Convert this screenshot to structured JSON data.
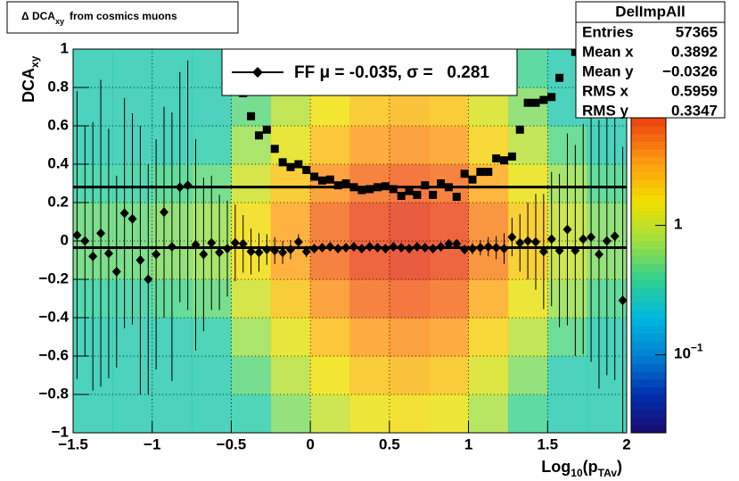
{
  "chart_data": {
    "type": "heatmap",
    "title": {
      "main": "Δ DCA",
      "sub": "xy",
      "rest": "from cosmics muons"
    },
    "ylabel": {
      "main": "DCA",
      "sub": "xy"
    },
    "xlabel": {
      "a": "Log",
      "sub1": "10",
      "b": "(p",
      "sub2": "TAv",
      "c": ")"
    },
    "xlim": [
      -1.5,
      2
    ],
    "ylim": [
      -1,
      1
    ],
    "xticks": [
      {
        "value": -1.5,
        "label": "−1.5"
      },
      {
        "value": -1,
        "label": "−1"
      },
      {
        "value": -0.5,
        "label": "−0.5"
      },
      0,
      0.5,
      1,
      1.5,
      2
    ],
    "yticks": [
      {
        "value": -1,
        "label": "−1"
      },
      {
        "value": -0.8,
        "label": "−0.8"
      },
      {
        "value": -0.6,
        "label": "−0.6"
      },
      {
        "value": -0.4,
        "label": "−0.4"
      },
      {
        "value": -0.2,
        "label": "−0.2"
      },
      0,
      0.2,
      0.4,
      0.6,
      0.8,
      1
    ],
    "grid": true,
    "zlim": [
      0.025,
      23
    ],
    "zlog": true,
    "zticks": [
      1,
      {
        "value": 0.1,
        "label": "10",
        "exponent": "−1"
      }
    ],
    "palette": [
      "#1a0a6e",
      "#0030b0",
      "#0080d0",
      "#00b8e0",
      "#30d090",
      "#a0e040",
      "#f0e000",
      "#ffa010",
      "#f05010",
      "#d01010",
      "#a00808"
    ],
    "heatmap": {
      "xbins": [
        -1.5,
        -1.25,
        -1,
        -0.75,
        -0.5,
        -0.25,
        0,
        0.25,
        0.5,
        0.75,
        1,
        1.25,
        1.5,
        1.75,
        2
      ],
      "ybins": [
        -1,
        -0.8,
        -0.6,
        -0.4,
        -0.2,
        0,
        0.2,
        0.4,
        0.6,
        0.8,
        1
      ],
      "z": [
        [
          0.3,
          0.3,
          0.3,
          0.3,
          0.32,
          0.6,
          1,
          1.4,
          1.6,
          1.4,
          0.8,
          0.4,
          0.3,
          0.3
        ],
        [
          0.3,
          0.3,
          0.3,
          0.3,
          0.48,
          0.9,
          1.5,
          2.1,
          2.4,
          2.1,
          1.2,
          0.6,
          0.3,
          0.3
        ],
        [
          0.3,
          0.3,
          0.3,
          0.32,
          0.72,
          1.35,
          2.25,
          3.15,
          3.6,
          3.15,
          1.8,
          0.9,
          0.45,
          0.3
        ],
        [
          0.35,
          0.35,
          0.42,
          0.49,
          1.1,
          2.1,
          3.5,
          4.9,
          5.6,
          4.9,
          2.8,
          1.4,
          0.7,
          0.42
        ],
        [
          0.5,
          0.5,
          0.6,
          0.7,
          1.6,
          3,
          5,
          7,
          8,
          7,
          4,
          2,
          1,
          0.6
        ],
        [
          0.5,
          0.5,
          0.6,
          0.7,
          1.6,
          3,
          5,
          7,
          8,
          7,
          4,
          2,
          1,
          0.6
        ],
        [
          0.35,
          0.35,
          0.42,
          0.49,
          1.1,
          2.1,
          3.5,
          4.9,
          5.6,
          4.9,
          2.8,
          1.4,
          0.7,
          0.42
        ],
        [
          0.3,
          0.3,
          0.3,
          0.32,
          0.72,
          1.35,
          2.25,
          3.15,
          3.6,
          3.15,
          1.8,
          0.9,
          0.45,
          0.3
        ],
        [
          0.3,
          0.3,
          0.3,
          0.3,
          0.48,
          0.9,
          1.5,
          2.1,
          2.4,
          2.1,
          1.2,
          0.6,
          0.3,
          0.3
        ],
        [
          0.3,
          0.3,
          0.3,
          0.3,
          0.32,
          0.6,
          1,
          1.4,
          1.6,
          1.4,
          0.8,
          0.4,
          0.3,
          0.3
        ]
      ]
    },
    "x": [
      -1.475,
      -1.425,
      -1.375,
      -1.325,
      -1.275,
      -1.225,
      -1.175,
      -1.125,
      -1.075,
      -1.025,
      -0.975,
      -0.925,
      -0.875,
      -0.825,
      -0.775,
      -0.725,
      -0.675,
      -0.625,
      -0.575,
      -0.525,
      -0.475,
      -0.425,
      -0.375,
      -0.325,
      -0.275,
      -0.225,
      -0.175,
      -0.125,
      -0.075,
      -0.025,
      0.025,
      0.075,
      0.125,
      0.175,
      0.225,
      0.275,
      0.325,
      0.375,
      0.425,
      0.475,
      0.525,
      0.575,
      0.625,
      0.675,
      0.725,
      0.775,
      0.825,
      0.875,
      0.925,
      0.975,
      1.025,
      1.075,
      1.125,
      1.175,
      1.225,
      1.275,
      1.325,
      1.375,
      1.425,
      1.475,
      1.525,
      1.575,
      1.625,
      1.675,
      1.725,
      1.775,
      1.825,
      1.875,
      1.925,
      1.975
    ],
    "series": [
      {
        "name": "FF μ = -0.035, σ =   0.281",
        "marker": "diamond",
        "color": "#000000",
        "values": [
          0.03,
          0.0,
          -0.08,
          0.04,
          -0.065,
          -0.16,
          0.145,
          0.115,
          -0.1,
          -0.2,
          -0.07,
          0.15,
          -0.03,
          0.28,
          0.29,
          -0.02,
          -0.07,
          -0.01,
          -0.06,
          -0.04,
          -0.01,
          -0.015,
          -0.055,
          -0.06,
          -0.045,
          -0.05,
          -0.06,
          -0.045,
          -0.005,
          -0.055,
          -0.04,
          -0.035,
          -0.03,
          -0.04,
          -0.035,
          -0.03,
          -0.04,
          -0.03,
          -0.035,
          -0.04,
          -0.03,
          -0.035,
          -0.04,
          -0.03,
          -0.035,
          -0.04,
          -0.03,
          -0.015,
          -0.015,
          -0.045,
          -0.04,
          -0.035,
          -0.03,
          -0.035,
          -0.04,
          0.02,
          -0.01,
          0.0,
          -0.005,
          -0.055,
          0.01,
          -0.05,
          0.06,
          -0.05,
          0.01,
          0.02,
          -0.07,
          0.0,
          0.025,
          -0.31
        ],
        "errors": [
          0.75,
          0.6,
          0.7,
          0.8,
          0.65,
          0.5,
          0.6,
          0.55,
          0.7,
          0.6,
          0.6,
          0.55,
          0.7,
          0.6,
          0.65,
          0.55,
          0.4,
          0.35,
          0.3,
          0.25,
          0.2,
          0.15,
          0.12,
          0.1,
          0.08,
          0.07,
          0.06,
          0.05,
          0.04,
          0.03,
          0.02,
          0.02,
          0.02,
          0.02,
          0.02,
          0.02,
          0.02,
          0.02,
          0.02,
          0.02,
          0.02,
          0.02,
          0.02,
          0.02,
          0.02,
          0.02,
          0.02,
          0.02,
          0.02,
          0.02,
          0.03,
          0.04,
          0.05,
          0.06,
          0.08,
          0.1,
          0.15,
          0.2,
          0.25,
          0.3,
          0.35,
          0.4,
          0.5,
          0.55,
          0.6,
          0.65,
          0.7,
          0.7,
          0.75,
          0.8
        ]
      },
      {
        "marker": "square",
        "color": "#000000",
        "values": [
          null,
          null,
          null,
          null,
          null,
          null,
          null,
          null,
          null,
          null,
          null,
          null,
          null,
          null,
          null,
          null,
          null,
          null,
          null,
          null,
          null,
          0.77,
          0.65,
          0.55,
          0.58,
          0.48,
          0.41,
          0.385,
          0.4,
          0.37,
          0.335,
          0.315,
          0.32,
          0.29,
          0.3,
          0.28,
          0.265,
          0.27,
          0.28,
          0.285,
          0.27,
          0.235,
          0.26,
          0.24,
          0.29,
          0.24,
          0.3,
          0.28,
          0.23,
          0.35,
          0.32,
          0.36,
          0.36,
          0.43,
          0.42,
          0.44,
          0.58,
          0.72,
          0.72,
          0.735,
          0.75,
          0.85,
          null,
          0.985,
          null,
          null,
          null,
          null,
          null,
          null
        ]
      }
    ],
    "fit_lines": [
      -0.035,
      0.281
    ],
    "stats": {
      "title": "DelImpAll",
      "rows": [
        [
          "Entries",
          "57365"
        ],
        [
          "Mean x",
          "0.3892"
        ],
        [
          "Mean y",
          "−0.0326"
        ],
        [
          "RMS x",
          "0.5959"
        ],
        [
          "RMS y",
          "0.3347"
        ]
      ]
    }
  }
}
